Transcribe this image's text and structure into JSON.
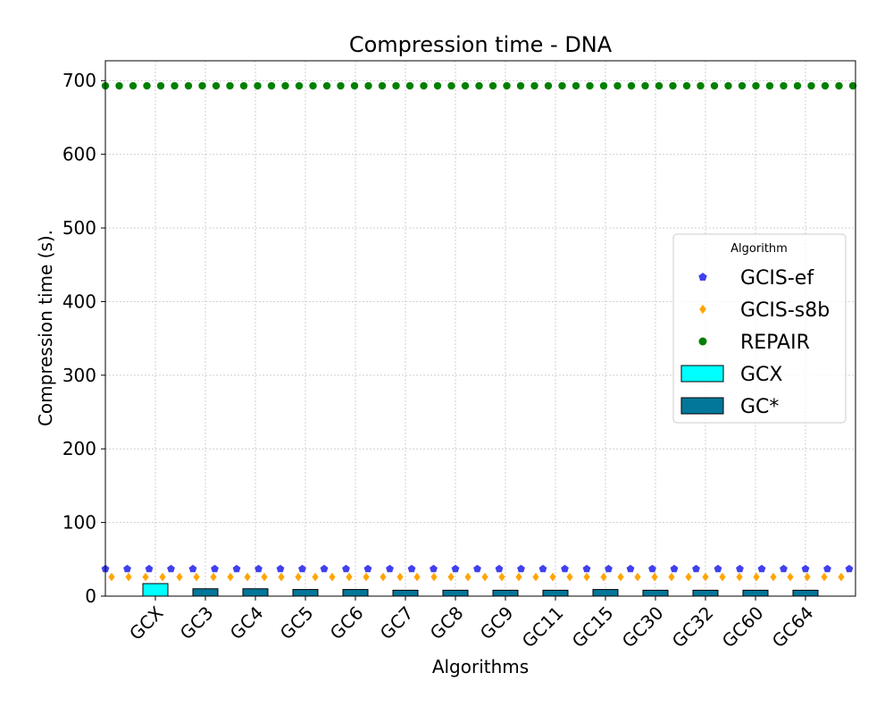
{
  "chart_data": {
    "type": "bar",
    "title": "Compression time -  DNA",
    "xlabel": "Algorithms",
    "ylabel": "Compression time (s).",
    "ylim": [
      0,
      727
    ],
    "yticks": [
      0,
      100,
      200,
      300,
      400,
      500,
      600,
      700
    ],
    "grid": true,
    "legend_title": "Algorithm",
    "legend_position": "right",
    "categories": [
      "GCX",
      "GC3",
      "GC4",
      "GC5",
      "GC6",
      "GC7",
      "GC8",
      "GC9",
      "GC11",
      "GC15",
      "GC30",
      "GC32",
      "GC60",
      "GC64"
    ],
    "bar_series": [
      {
        "name": "GCX",
        "color": "#00ffff",
        "values": [
          17,
          null,
          null,
          null,
          null,
          null,
          null,
          null,
          null,
          null,
          null,
          null,
          null,
          null
        ]
      },
      {
        "name": "GC*",
        "color": "#03779a",
        "values": [
          null,
          10,
          10,
          9,
          9,
          8,
          8,
          8,
          8,
          9,
          8,
          8,
          8,
          8
        ]
      }
    ],
    "baseline_series": [
      {
        "name": "GCIS-ef",
        "color": "#4040ee",
        "marker": "pentagon",
        "value": 37
      },
      {
        "name": "GCIS-s8b",
        "color": "#ffa500",
        "marker": "diamond",
        "value": 26
      },
      {
        "name": "REPAIR",
        "color": "#008000",
        "marker": "circle",
        "value": 693
      }
    ]
  }
}
